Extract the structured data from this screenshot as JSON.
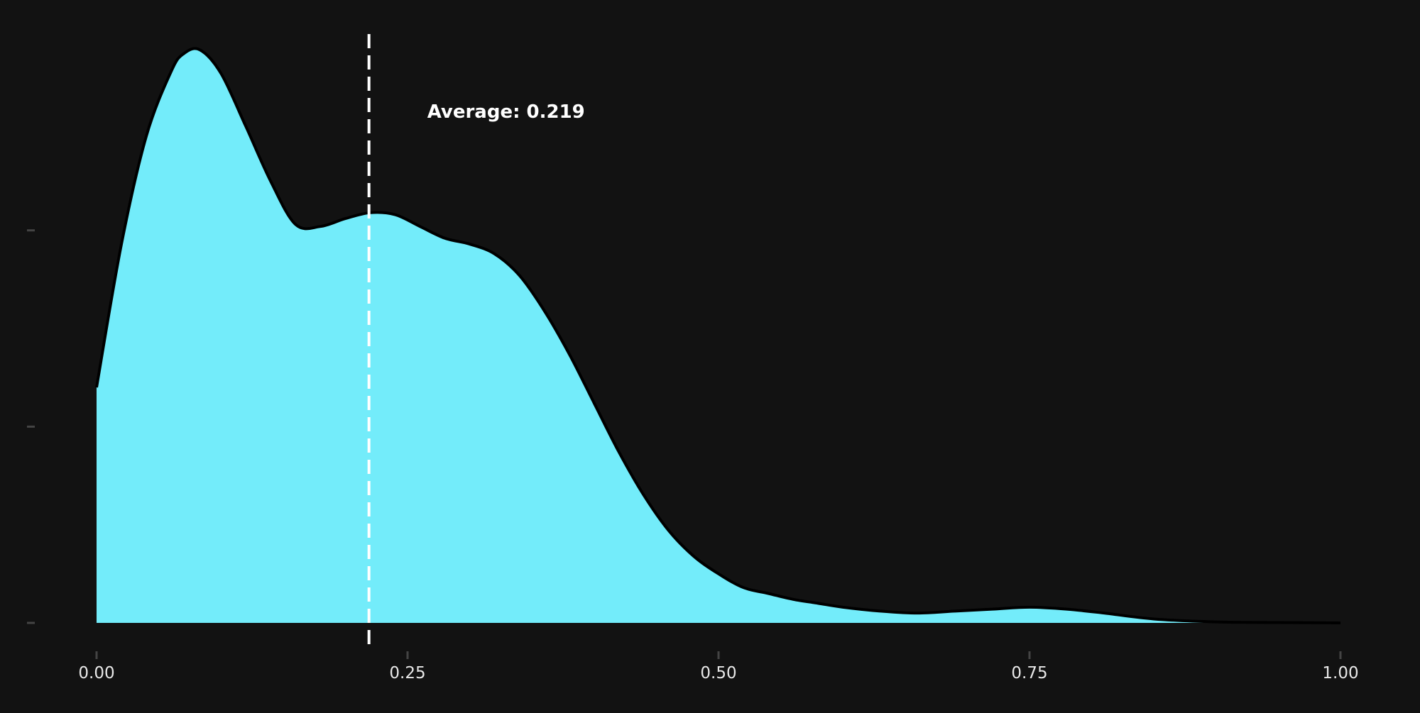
{
  "chart_data": {
    "type": "area",
    "title": "",
    "xlabel": "",
    "ylabel": "",
    "xlim": [
      0,
      1
    ],
    "ylim": [
      0,
      3.04
    ],
    "x_ticks": [
      0,
      0.25,
      0.5,
      0.75,
      1
    ],
    "x_tick_labels": [
      "0.00",
      "0.25",
      "0.50",
      "0.75",
      "1.00"
    ],
    "y_ticks": [
      0,
      1,
      2
    ],
    "y_tick_labels": [
      "",
      "",
      ""
    ],
    "grid": false,
    "legend": "none",
    "series": [
      {
        "x": [
          0.0,
          0.02,
          0.04,
          0.06,
          0.07,
          0.083,
          0.1,
          0.12,
          0.14,
          0.16,
          0.18,
          0.2,
          0.22,
          0.24,
          0.26,
          0.28,
          0.3,
          0.32,
          0.34,
          0.36,
          0.38,
          0.4,
          0.42,
          0.44,
          0.46,
          0.48,
          0.5,
          0.52,
          0.54,
          0.56,
          0.58,
          0.6,
          0.63,
          0.66,
          0.69,
          0.72,
          0.75,
          0.78,
          0.81,
          0.85,
          0.9,
          0.95,
          1.0
        ],
        "y": [
          1.2,
          1.93,
          2.48,
          2.81,
          2.9,
          2.92,
          2.8,
          2.53,
          2.25,
          2.03,
          2.02,
          2.06,
          2.09,
          2.08,
          2.02,
          1.96,
          1.93,
          1.88,
          1.77,
          1.59,
          1.37,
          1.12,
          0.87,
          0.65,
          0.47,
          0.34,
          0.25,
          0.18,
          0.15,
          0.12,
          0.1,
          0.08,
          0.06,
          0.05,
          0.06,
          0.07,
          0.08,
          0.07,
          0.05,
          0.02,
          0.005,
          0.002,
          0.0
        ]
      }
    ],
    "annotations": [
      {
        "type": "vline",
        "x": 0.219,
        "label": "Average: 0.219"
      }
    ],
    "colors": {
      "background": "#121212",
      "fill": "#73ECFA",
      "curve": "#000000",
      "mean_line": "#FFFFFF",
      "annotation_text": "#FFFFFF",
      "tick_label": "#E8E8E8",
      "tick_mark": "#444444"
    }
  }
}
